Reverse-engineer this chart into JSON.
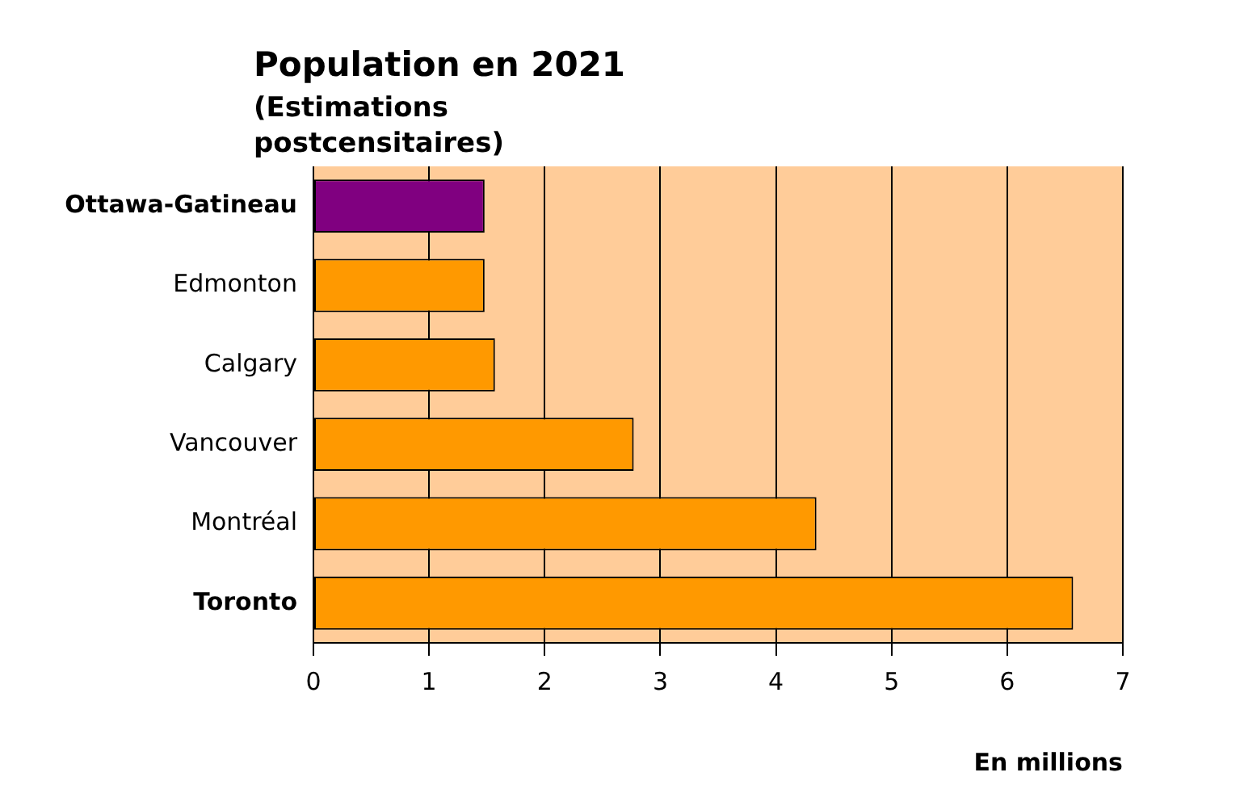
{
  "chart_data": {
    "type": "bar",
    "orientation": "horizontal",
    "title": "Population en 2021",
    "subtitle": "(Estimations postcensitaires)",
    "xlabel": "En millions",
    "categories": [
      "Ottawa-Gatineau",
      "Edmonton",
      "Calgary",
      "Vancouver",
      "Montréal",
      "Toronto"
    ],
    "values": [
      1.48,
      1.48,
      1.57,
      2.77,
      4.35,
      6.57
    ],
    "colors": [
      "#800080",
      "#ff9900",
      "#ff9900",
      "#ff9900",
      "#ff9900",
      "#ff9900"
    ],
    "xlim": [
      0,
      7
    ],
    "xticks": [
      0,
      1,
      2,
      3,
      4,
      5,
      6,
      7
    ],
    "grid": "x",
    "legend": false
  }
}
